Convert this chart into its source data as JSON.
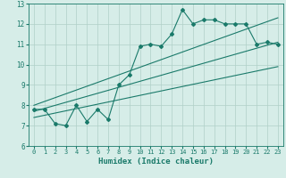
{
  "title": "",
  "xlabel": "Humidex (Indice chaleur)",
  "ylabel": "",
  "xlim": [
    -0.5,
    23.5
  ],
  "ylim": [
    6,
    13
  ],
  "yticks": [
    6,
    7,
    8,
    9,
    10,
    11,
    12,
    13
  ],
  "xticks": [
    0,
    1,
    2,
    3,
    4,
    5,
    6,
    7,
    8,
    9,
    10,
    11,
    12,
    13,
    14,
    15,
    16,
    17,
    18,
    19,
    20,
    21,
    22,
    23
  ],
  "bg_color": "#d6ede8",
  "grid_color": "#b0d0c8",
  "line_color": "#1a7a6a",
  "main_line_x": [
    0,
    1,
    2,
    3,
    4,
    5,
    6,
    7,
    8,
    9,
    10,
    11,
    12,
    13,
    14,
    15,
    16,
    17,
    18,
    19,
    20,
    21,
    22,
    23
  ],
  "main_line_y": [
    7.8,
    7.8,
    7.1,
    7.0,
    8.0,
    7.2,
    7.8,
    7.3,
    9.0,
    9.5,
    10.9,
    11.0,
    10.9,
    11.5,
    12.7,
    12.0,
    12.2,
    12.2,
    12.0,
    12.0,
    12.0,
    11.0,
    11.1,
    11.0
  ],
  "upper_line_x": [
    0,
    23
  ],
  "upper_line_y": [
    8.0,
    12.3
  ],
  "lower_line_x": [
    0,
    23
  ],
  "lower_line_y": [
    7.4,
    9.9
  ],
  "trend_line_x": [
    0,
    23
  ],
  "trend_line_y": [
    7.7,
    11.1
  ],
  "xlabel_fontsize": 6.5,
  "tick_fontsize": 5,
  "linewidth": 0.8,
  "marker_size": 2.0
}
